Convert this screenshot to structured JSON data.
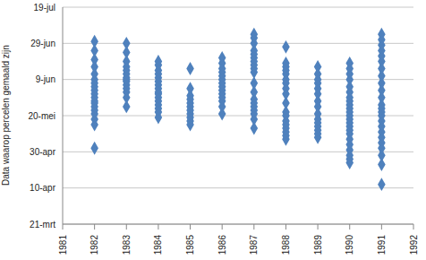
{
  "chart_data": {
    "type": "scatter",
    "y_label": "Data waarop percelen gemaald zijn",
    "color": "#4f81bd",
    "marker": "diamond",
    "grid": true,
    "xlim": [
      1981,
      1992
    ],
    "xticks": [
      1981,
      1982,
      1983,
      1984,
      1985,
      1986,
      1987,
      1988,
      1989,
      1990,
      1991,
      1992
    ],
    "ylim": [
      80,
      200
    ],
    "yticks": [
      {
        "value": 80,
        "label": "21-mrt"
      },
      {
        "value": 100,
        "label": "10-apr"
      },
      {
        "value": 120,
        "label": "30-apr"
      },
      {
        "value": 140,
        "label": "20-mei"
      },
      {
        "value": 160,
        "label": "9-jun"
      },
      {
        "value": 180,
        "label": "29-jun"
      },
      {
        "value": 200,
        "label": "19-jul"
      }
    ],
    "x": [
      1982,
      1982,
      1982,
      1982,
      1982,
      1982,
      1982,
      1982,
      1982,
      1982,
      1982,
      1982,
      1982,
      1982,
      1982,
      1982,
      1982,
      1982,
      1982,
      1983,
      1983,
      1983,
      1983,
      1983,
      1983,
      1983,
      1983,
      1983,
      1983,
      1983,
      1983,
      1983,
      1983,
      1984,
      1984,
      1984,
      1984,
      1984,
      1984,
      1984,
      1984,
      1984,
      1984,
      1984,
      1984,
      1984,
      1984,
      1984,
      1984,
      1985,
      1985,
      1985,
      1985,
      1985,
      1985,
      1985,
      1985,
      1985,
      1985,
      1985,
      1986,
      1986,
      1986,
      1986,
      1986,
      1986,
      1986,
      1986,
      1986,
      1986,
      1986,
      1986,
      1986,
      1986,
      1987,
      1987,
      1987,
      1987,
      1987,
      1987,
      1987,
      1987,
      1987,
      1987,
      1987,
      1987,
      1987,
      1987,
      1987,
      1987,
      1987,
      1987,
      1987,
      1988,
      1988,
      1988,
      1988,
      1988,
      1988,
      1988,
      1988,
      1988,
      1988,
      1988,
      1988,
      1988,
      1988,
      1988,
      1988,
      1988,
      1988,
      1989,
      1989,
      1989,
      1989,
      1989,
      1989,
      1989,
      1989,
      1989,
      1989,
      1989,
      1989,
      1989,
      1989,
      1989,
      1990,
      1990,
      1990,
      1990,
      1990,
      1990,
      1990,
      1990,
      1990,
      1990,
      1990,
      1990,
      1990,
      1990,
      1990,
      1990,
      1990,
      1990,
      1990,
      1990,
      1990,
      1990,
      1990,
      1991,
      1991,
      1991,
      1991,
      1991,
      1991,
      1991,
      1991,
      1991,
      1991,
      1991,
      1991,
      1991,
      1991,
      1991,
      1991,
      1991,
      1991,
      1991,
      1991,
      1991,
      1991,
      1991,
      1991
    ],
    "values": [
      122,
      135,
      138,
      141,
      143,
      145,
      147,
      148,
      150,
      152,
      154,
      156,
      158,
      160,
      163,
      167,
      171,
      176,
      181,
      145,
      150,
      153,
      155,
      157,
      159,
      160,
      161,
      163,
      165,
      167,
      170,
      175,
      180,
      139,
      142,
      144,
      146,
      148,
      150,
      152,
      153,
      155,
      157,
      159,
      161,
      163,
      165,
      168,
      170,
      135,
      137,
      139,
      141,
      143,
      145,
      147,
      149,
      151,
      155,
      166,
      141,
      145,
      148,
      150,
      152,
      154,
      156,
      158,
      160,
      162,
      164,
      166,
      169,
      172,
      133,
      138,
      141,
      143,
      145,
      147,
      149,
      153,
      158,
      164,
      166,
      168,
      170,
      172,
      174,
      176,
      180,
      183,
      185,
      127,
      129,
      131,
      133,
      135,
      137,
      140,
      142,
      147,
      152,
      155,
      158,
      160,
      163,
      165,
      167,
      169,
      178,
      128,
      130,
      132,
      134,
      136,
      138,
      141,
      145,
      148,
      152,
      155,
      158,
      160,
      163,
      167,
      114,
      116,
      118,
      121,
      124,
      127,
      130,
      132,
      134,
      136,
      138,
      140,
      142,
      144,
      146,
      148,
      150,
      153,
      156,
      160,
      163,
      166,
      169,
      102,
      113,
      118,
      122,
      125,
      128,
      131,
      134,
      137,
      140,
      142,
      144,
      146,
      150,
      154,
      158,
      162,
      166,
      170,
      173,
      176,
      179,
      182,
      185
    ]
  }
}
